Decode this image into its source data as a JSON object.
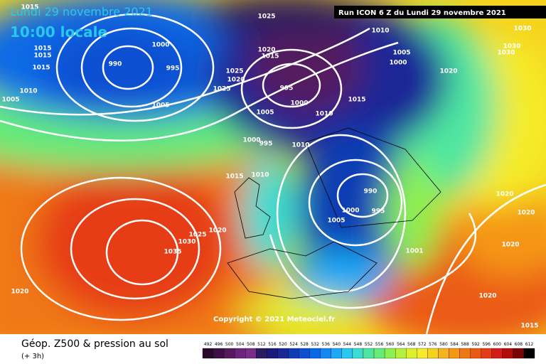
{
  "header": {
    "date": "Lundi 29 novembre 2021",
    "time": "10:00 locale",
    "run": "Run ICON 6 Z du Lundi 29 novembre 2021"
  },
  "copyright": "Copyright © 2021 Meteociel.fr",
  "footer": {
    "title": "Géop. Z500 & pression au sol",
    "lead": "(+ 3h)"
  },
  "legend": {
    "labels": [
      492,
      496,
      500,
      504,
      508,
      512,
      516,
      520,
      524,
      528,
      532,
      536,
      540,
      544,
      548,
      552,
      556,
      560,
      564,
      568,
      572,
      576,
      580,
      584,
      588,
      592,
      596,
      600,
      604,
      608,
      612
    ],
    "colors": [
      "#2a0a2a",
      "#3d0f45",
      "#551a5e",
      "#6b2479",
      "#7a2c8a",
      "#2c1b5e",
      "#1a1a7a",
      "#1a2896",
      "#0f3cb4",
      "#0a50d2",
      "#0a6ae6",
      "#1488f0",
      "#1ea8f5",
      "#28c8f0",
      "#3cdcd2",
      "#50e6a0",
      "#64eb78",
      "#8cf050",
      "#b4f03c",
      "#dcf032",
      "#f5eb28",
      "#f5d21e",
      "#f5b41e",
      "#f59614",
      "#f07814",
      "#eb5a14",
      "#e63c14",
      "#d21e14",
      "#b40a0a",
      "#780505",
      "#000000"
    ]
  },
  "isobar_labels": [
    1015,
    1015,
    1015,
    1015,
    1010,
    1005,
    990,
    1000,
    995,
    1005,
    1025,
    1020,
    1015,
    1025,
    1020,
    1025,
    995,
    1000,
    1005,
    1010,
    1015,
    1000,
    995,
    1010,
    1015,
    1010,
    990,
    1000,
    995,
    1005,
    1010,
    1005,
    1000,
    1020,
    1035,
    1030,
    1025,
    1020,
    1020,
    1001,
    1020,
    1020,
    1020,
    1020,
    1015,
    1030,
    1030,
    1030
  ]
}
